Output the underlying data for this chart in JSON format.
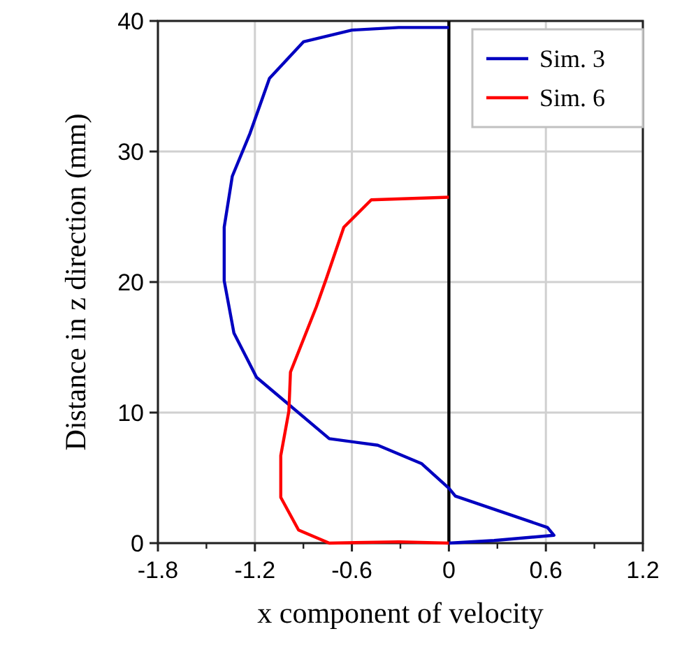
{
  "chart_data": {
    "type": "line",
    "xlabel": "x component of velocity",
    "ylabel": "Distance in z direction (mm)",
    "xlim": [
      -1.8,
      1.2
    ],
    "xticks": [
      -1.8,
      -1.2,
      -0.6,
      0,
      0.6,
      1.2
    ],
    "ylim": [
      0,
      40
    ],
    "yticks": [
      0,
      10,
      20,
      30,
      40
    ],
    "grid": true,
    "legend": "top right",
    "marker": "none",
    "line_style": "solid",
    "ref_lines": [
      {
        "axis": "x",
        "value": 0,
        "color": "#000000"
      }
    ],
    "series": [
      {
        "name": "Sim. 3",
        "color": "#0000c0",
        "x": [
          0,
          -0.31,
          -0.6,
          -0.9,
          -1.11,
          -1.23,
          -1.34,
          -1.39,
          -1.39,
          -1.33,
          -1.19,
          -0.74,
          -0.44,
          -0.17,
          0,
          0.04,
          0.61,
          0.65,
          0.28,
          0
        ],
        "values": [
          39.5,
          39.5,
          39.3,
          38.4,
          35.6,
          31.4,
          28.1,
          24.2,
          20.1,
          16.1,
          12.7,
          8.0,
          7.5,
          6.1,
          4.2,
          3.6,
          1.2,
          0.6,
          0.2,
          0
        ]
      },
      {
        "name": "Sim. 6",
        "color": "#ff0000",
        "x": [
          0,
          -0.48,
          -0.65,
          -0.76,
          -0.82,
          -0.98,
          -0.99,
          -1.04,
          -1.04,
          -0.93,
          -0.74,
          -0.31,
          0
        ],
        "values": [
          26.5,
          26.3,
          24.2,
          20.2,
          18.1,
          13.1,
          10.1,
          6.7,
          3.5,
          1.0,
          0,
          0.1,
          0
        ]
      }
    ]
  }
}
